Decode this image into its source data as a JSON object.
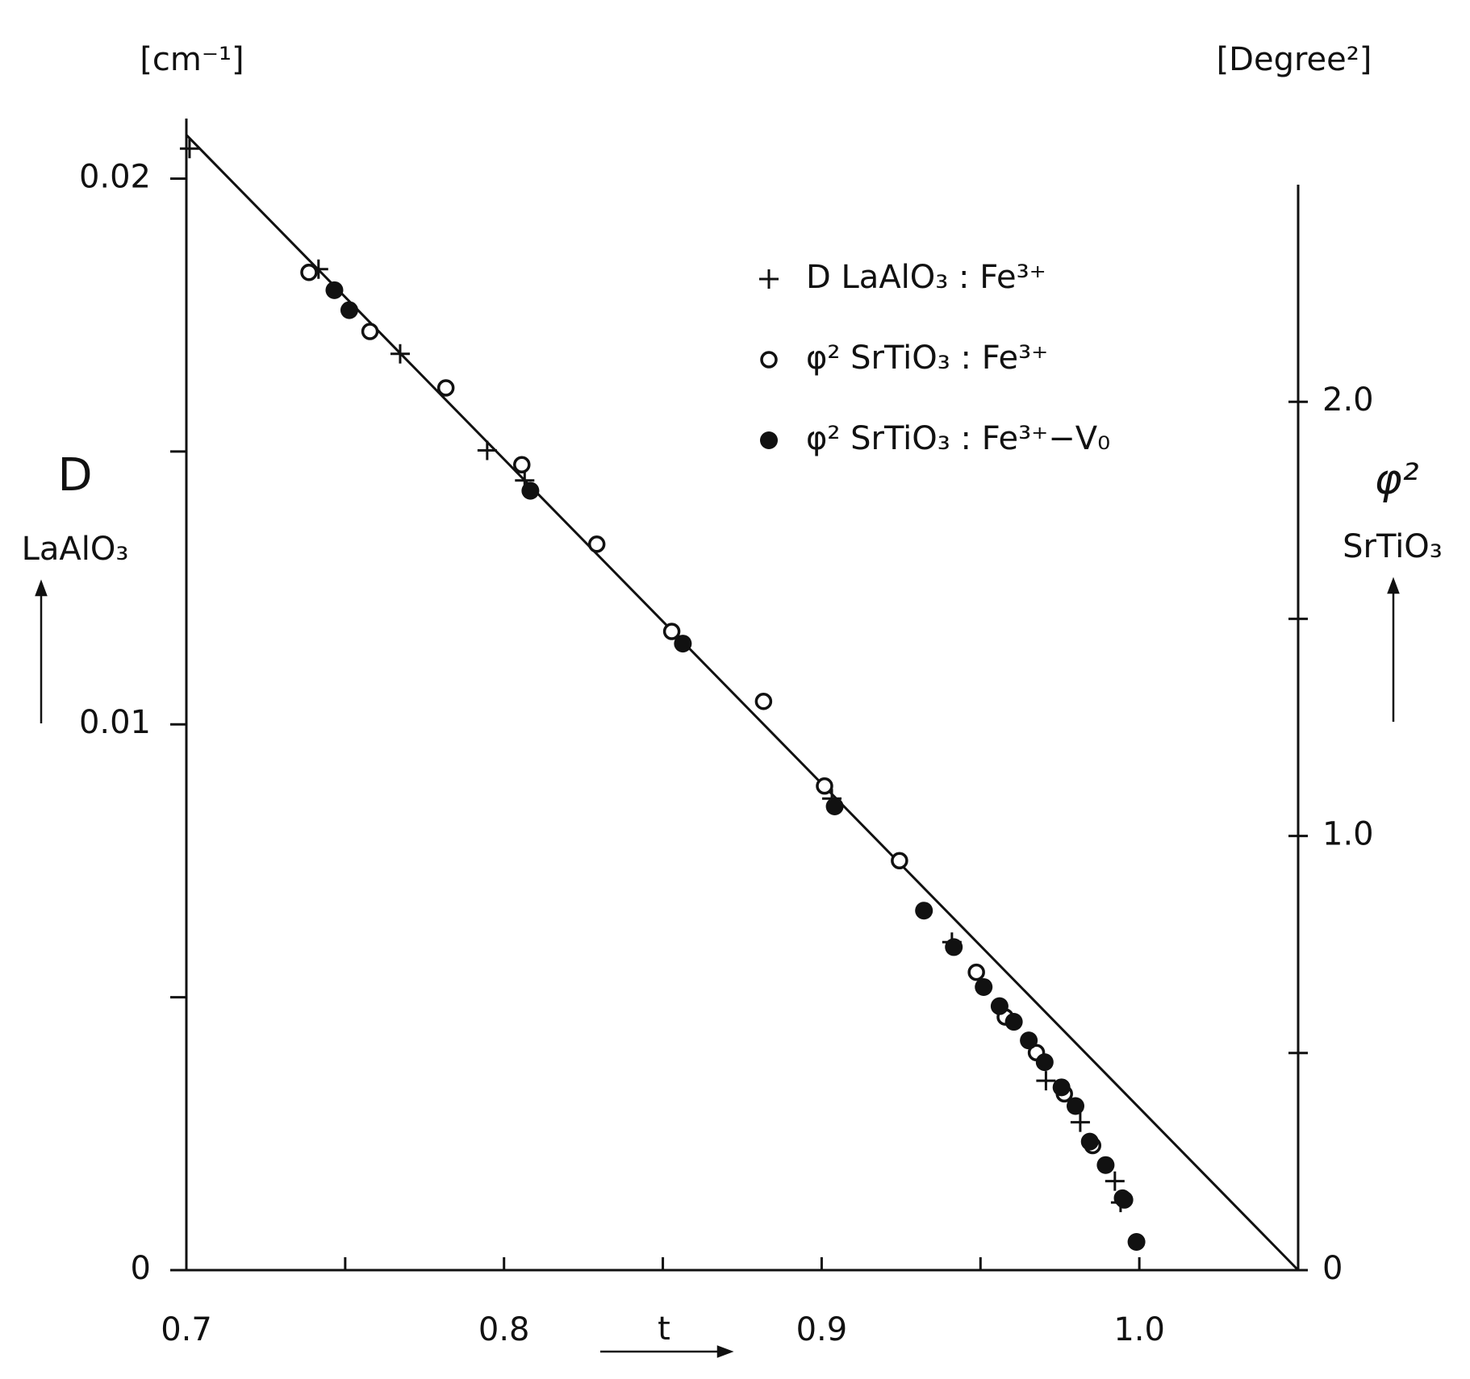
{
  "chart_data": {
    "type": "scatter",
    "x_label": "t",
    "y_label": "D",
    "y_label_sub": "LaAlO₃",
    "y_unit": "[cm⁻¹]",
    "y2_label": "φ²",
    "y2_label_sub": "SrTiO₃",
    "y2_unit": "[Degree²]",
    "xlim": [
      0.7,
      1.05
    ],
    "xticks": [
      {
        "value": 0.7,
        "label": "0.7"
      },
      {
        "value": 0.8,
        "label": "0.8"
      },
      {
        "value": 0.9,
        "label": "0.9"
      },
      {
        "value": 1.0,
        "label": "1.0"
      }
    ],
    "xminor": [
      0.75,
      0.85,
      0.95
    ],
    "ylim": [
      0,
      0.0211
    ],
    "yticks": [
      0,
      0.01,
      0.02
    ],
    "yminor": [
      0.005,
      0.015
    ],
    "y2lim": [
      0,
      2.5
    ],
    "y2ticks": [
      0,
      {
        "value": 1.0,
        "label": "1.0"
      },
      {
        "value": 2.0,
        "label": "2.0"
      }
    ],
    "y2minor": [
      0.5,
      1.5
    ],
    "legend_position": "upper right",
    "fit_line": {
      "x": [
        0.7,
        1.05
      ],
      "values": [
        0.0208,
        0
      ],
      "color": "#111111"
    },
    "series": [
      {
        "name": "D LaAlO₃ : Fe³⁺",
        "marker": "plus",
        "color": "#111111",
        "x": [
          0.701,
          0.7416,
          0.7673,
          0.7947,
          0.8065,
          0.9032,
          0.941,
          0.9706,
          0.9814,
          0.9923,
          0.9941
        ],
        "values": [
          0.02055,
          0.01834,
          0.01679,
          0.01502,
          0.01447,
          0.00864,
          0.00601,
          0.00347,
          0.00271,
          0.00163,
          0.00124
        ]
      },
      {
        "name": "φ² SrTiO₃ : Fe³⁺",
        "marker": "open",
        "color": "#111111",
        "axis": "y2",
        "x": [
          0.7386,
          0.7578,
          0.7817,
          0.8056,
          0.8292,
          0.8528,
          0.8817,
          0.9009,
          0.9245,
          0.9487,
          0.9578,
          0.9676,
          0.9764,
          0.9853,
          0.9947
        ],
        "values": [
          2.298,
          2.162,
          2.032,
          1.855,
          1.672,
          1.471,
          1.31,
          1.115,
          0.943,
          0.686,
          0.583,
          0.501,
          0.406,
          0.287,
          0.166
        ]
      },
      {
        "name": "φ² SrTiO₃ : Fe³⁺−V₀",
        "marker": "filled",
        "color": "#111111",
        "axis": "y2",
        "x": [
          0.7466,
          0.7513,
          0.8083,
          0.8563,
          0.9041,
          0.9322,
          0.9416,
          0.951,
          0.956,
          0.9605,
          0.9652,
          0.9702,
          0.9755,
          0.9799,
          0.9844,
          0.9894,
          0.9953,
          0.9991
        ],
        "values": [
          2.257,
          2.211,
          1.795,
          1.443,
          1.068,
          0.828,
          0.744,
          0.652,
          0.608,
          0.572,
          0.529,
          0.479,
          0.421,
          0.378,
          0.296,
          0.242,
          0.162,
          0.065
        ]
      }
    ]
  }
}
